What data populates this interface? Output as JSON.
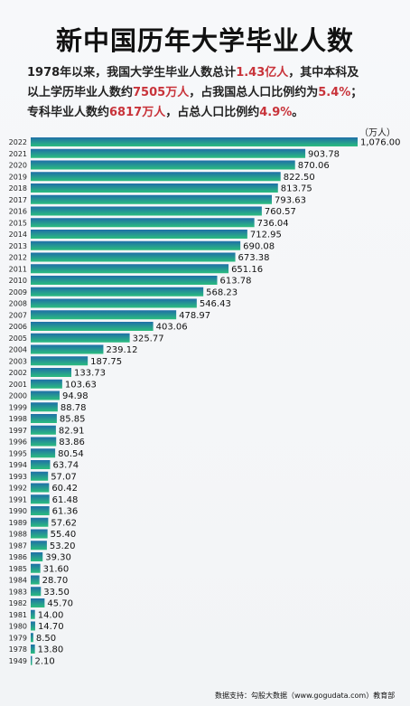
{
  "title": "新中国历年大学毕业人数",
  "summary": {
    "l1a": "1978年以来，我国大学生毕业人数总计",
    "l1b": "1.43亿人",
    "l1c": "，其中本科及",
    "l2a": "以上学历毕业人数约",
    "l2b": "7505万人",
    "l2c": "，占我国总人口比例约为",
    "l2d": "5.4%",
    "l2e": "；",
    "l3a": "专科毕业人数约",
    "l3b": "6817万人",
    "l3c": "，占总人口比例约",
    "l3d": "4.9%",
    "l3e": "。"
  },
  "unit_label": "（万人）",
  "footer": "数据支持：勾股大数据（www.gogudata.com）教育部",
  "colors": {
    "bar_top": "#1f6fa8",
    "bar_bottom": "#2bbd7e",
    "highlight": "#c8333a"
  },
  "chart_data": {
    "type": "bar",
    "orientation": "horizontal",
    "title": "新中国历年大学毕业人数",
    "unit": "（万人）",
    "grid": false,
    "categories": [
      "2022",
      "2021",
      "2020",
      "2019",
      "2018",
      "2017",
      "2016",
      "2015",
      "2014",
      "2013",
      "2012",
      "2011",
      "2010",
      "2009",
      "2008",
      "2007",
      "2006",
      "2005",
      "2004",
      "2003",
      "2002",
      "2001",
      "2000",
      "1999",
      "1998",
      "1997",
      "1996",
      "1995",
      "1994",
      "1993",
      "1992",
      "1991",
      "1990",
      "1989",
      "1988",
      "1987",
      "1986",
      "1985",
      "1984",
      "1983",
      "1982",
      "1981",
      "1980",
      "1979",
      "1978",
      "1949"
    ],
    "values": [
      1076.0,
      903.78,
      870.06,
      822.5,
      813.75,
      793.63,
      760.57,
      736.04,
      712.95,
      690.08,
      673.38,
      651.16,
      613.78,
      568.23,
      546.43,
      478.97,
      403.06,
      325.77,
      239.12,
      187.75,
      133.73,
      103.63,
      94.98,
      88.78,
      85.85,
      82.91,
      83.86,
      80.54,
      63.74,
      57.07,
      60.42,
      61.48,
      61.36,
      57.62,
      55.4,
      53.2,
      39.3,
      31.6,
      28.7,
      33.5,
      45.7,
      14.0,
      14.7,
      8.5,
      13.8,
      2.1
    ],
    "value_labels": [
      "1,076.00",
      "903.78",
      "870.06",
      "822.50",
      "813.75",
      "793.63",
      "760.57",
      "736.04",
      "712.95",
      "690.08",
      "673.38",
      "651.16",
      "613.78",
      "568.23",
      "546.43",
      "478.97",
      "403.06",
      "325.77",
      "239.12",
      "187.75",
      "133.73",
      "103.63",
      "94.98",
      "88.78",
      "85.85",
      "82.91",
      "83.86",
      "80.54",
      "63.74",
      "57.07",
      "60.42",
      "61.48",
      "61.36",
      "57.62",
      "55.40",
      "53.20",
      "39.30",
      "31.60",
      "28.70",
      "33.50",
      "45.70",
      "14.00",
      "14.70",
      "8.50",
      "13.80",
      "2.10"
    ],
    "xlim": [
      0,
      1076
    ]
  }
}
